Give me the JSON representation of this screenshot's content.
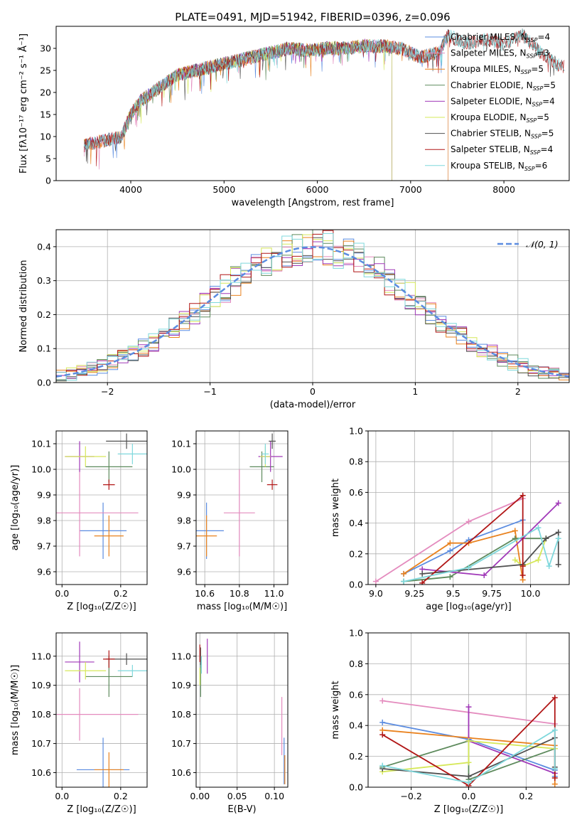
{
  "figure_title": "PLATE=0491, MJD=51942, FIBERID=0396, z=0.096",
  "palette": {
    "Chabrier MILES": "#5b8ce0",
    "Salpeter MILES": "#e48bbe",
    "Kroupa MILES": "#e9821e",
    "Chabrier ELODIE": "#5d8a5c",
    "Salpeter ELODIE": "#a038b8",
    "Kroupa ELODIE": "#d6e85a",
    "Chabrier STELIB": "#505050",
    "Salpeter STELIB": "#b11616",
    "Kroupa STELIB": "#7fd8dc"
  },
  "chart_data": [
    {
      "id": "spectrum",
      "type": "line",
      "title": "PLATE=0491, MJD=51942, FIBERID=0396, z=0.096",
      "xlabel": "wavelength [Angstrom, rest frame]",
      "ylabel": "Flux [fλ10⁻¹⁷ erg cm⁻² s⁻¹ Å⁻¹]",
      "xlim": [
        3200,
        8700
      ],
      "ylim": [
        0,
        35
      ],
      "xticks": [
        "4000",
        "5000",
        "6000",
        "7000",
        "8000"
      ],
      "yticks": [
        "0",
        "5",
        "10",
        "15",
        "20",
        "25",
        "30"
      ],
      "grid": false,
      "legend_position": "top-right",
      "continuum": {
        "x": [
          3500,
          3700,
          3900,
          4000,
          4100,
          4300,
          4500,
          4700,
          4900,
          5100,
          5300,
          5500,
          5700,
          5900,
          6100,
          6300,
          6500,
          6700,
          6900,
          7100,
          7300,
          7400,
          7600,
          7800,
          8000,
          8200,
          8400,
          8600
        ],
        "y": [
          8,
          9,
          10,
          15,
          18,
          21,
          24,
          25,
          26,
          27,
          28,
          29,
          30,
          29.5,
          30,
          30,
          30.5,
          30.5,
          30,
          28,
          29,
          33,
          31,
          32,
          31,
          33,
          29,
          26
        ]
      },
      "series": [
        {
          "name": "Chabrier MILES, N_SSP=4",
          "x_range": [
            3500,
            7400
          ]
        },
        {
          "name": "Salpeter MILES, N_SSP=3",
          "x_range": [
            3500,
            7400
          ]
        },
        {
          "name": "Kroupa MILES, N_SSP=5",
          "x_range": [
            3500,
            7400
          ]
        },
        {
          "name": "Chabrier ELODIE, N_SSP=5",
          "x_range": [
            3900,
            6800
          ]
        },
        {
          "name": "Salpeter ELODIE, N_SSP=4",
          "x_range": [
            3900,
            6800
          ]
        },
        {
          "name": "Kroupa ELODIE, N_SSP=5",
          "x_range": [
            3900,
            6800
          ]
        },
        {
          "name": "Chabrier STELIB, N_SSP=5",
          "x_range": [
            3500,
            8650
          ]
        },
        {
          "name": "Salpeter STELIB, N_SSP=4",
          "x_range": [
            3500,
            8650
          ]
        },
        {
          "name": "Kroupa STELIB, N_SSP=6",
          "x_range": [
            3500,
            8650
          ]
        }
      ],
      "legend": [
        "Chabrier MILES, N_SSP=4",
        "Salpeter MILES, N_SSP=3",
        "Kroupa MILES, N_SSP=5",
        "Chabrier ELODIE, N_SSP=5",
        "Salpeter ELODIE, N_SSP=4",
        "Kroupa ELODIE, N_SSP=5",
        "Chabrier STELIB, N_SSP=5",
        "Salpeter STELIB, N_SSP=4",
        "Kroupa STELIB, N_SSP=6"
      ]
    },
    {
      "id": "residuals",
      "type": "line",
      "xlabel": "(data-model)/error",
      "ylabel": "Normed distribution",
      "xlim": [
        -2.5,
        2.5
      ],
      "ylim": [
        0,
        0.45
      ],
      "xticks": [
        "−2",
        "−1",
        "0",
        "1",
        "2"
      ],
      "yticks": [
        "0.0",
        "0.1",
        "0.2",
        "0.3",
        "0.4"
      ],
      "grid": true,
      "legend_position": "top-right",
      "legend": [
        "𝒩(0, 1)"
      ],
      "bins": [
        -2.5,
        -2.4,
        -2.3,
        -2.2,
        -2.1,
        -2.0,
        -1.9,
        -1.8,
        -1.7,
        -1.6,
        -1.5,
        -1.4,
        -1.3,
        -1.2,
        -1.1,
        -1.0,
        -0.9,
        -0.8,
        -0.7,
        -0.6,
        -0.5,
        -0.4,
        -0.3,
        -0.2,
        -0.1,
        0.0,
        0.1,
        0.2,
        0.3,
        0.4,
        0.5,
        0.6,
        0.7,
        0.8,
        0.9,
        1.0,
        1.1,
        1.2,
        1.3,
        1.4,
        1.5,
        1.6,
        1.7,
        1.8,
        1.9,
        2.0,
        2.1,
        2.2,
        2.3,
        2.4,
        2.5
      ],
      "gaussian": {
        "mean": 0,
        "sigma": 1
      }
    },
    {
      "id": "age-vs-Z",
      "type": "scatter",
      "xlabel": "Z [log₁₀(Z/Z☉)]",
      "ylabel": "age  [log₁₀(age/yr)]",
      "xlim": [
        -0.02,
        0.29
      ],
      "ylim": [
        9.55,
        10.15
      ],
      "xticks": [
        "0.0",
        "0.2"
      ],
      "yticks": [
        "9.6",
        "9.7",
        "9.8",
        "9.9",
        "10.0",
        "10.1"
      ],
      "grid": true,
      "points": [
        {
          "name": "Chabrier MILES",
          "x": 0.14,
          "y": 9.76,
          "xerr": 0.08,
          "yerr": 0.11
        },
        {
          "name": "Salpeter MILES",
          "x": 0.06,
          "y": 9.83,
          "xerr": 0.2,
          "yerr": 0.17
        },
        {
          "name": "Kroupa MILES",
          "x": 0.16,
          "y": 9.74,
          "xerr": 0.05,
          "yerr": 0.08
        },
        {
          "name": "Chabrier ELODIE",
          "x": 0.16,
          "y": 10.01,
          "xerr": 0.08,
          "yerr": 0.06
        },
        {
          "name": "Salpeter ELODIE",
          "x": 0.06,
          "y": 10.05,
          "xerr": 0.05,
          "yerr": 0.06
        },
        {
          "name": "Kroupa ELODIE",
          "x": 0.08,
          "y": 10.05,
          "xerr": 0.07,
          "yerr": 0.04
        },
        {
          "name": "Chabrier STELIB",
          "x": 0.22,
          "y": 10.11,
          "xerr": 0.07,
          "yerr": 0.03
        },
        {
          "name": "Salpeter STELIB",
          "x": 0.16,
          "y": 9.94,
          "xerr": 0.02,
          "yerr": 0.02
        },
        {
          "name": "Kroupa STELIB",
          "x": 0.24,
          "y": 10.06,
          "xerr": 0.05,
          "yerr": 0.04
        }
      ]
    },
    {
      "id": "age-vs-mass",
      "type": "scatter",
      "xlabel": "mass [log₁₀(M/M☉)]",
      "ylabel": "",
      "xlim": [
        10.55,
        11.08
      ],
      "ylim": [
        9.55,
        10.15
      ],
      "xticks": [
        "10.6",
        "10.8",
        "11.0"
      ],
      "yticks": [
        "9.6",
        "9.7",
        "9.8",
        "9.9",
        "10.0",
        "10.1"
      ],
      "grid": true,
      "points": [
        {
          "name": "Chabrier MILES",
          "x": 10.61,
          "y": 9.76,
          "xerr": 0.1,
          "yerr": 0.11
        },
        {
          "name": "Salpeter MILES",
          "x": 10.8,
          "y": 9.83,
          "xerr": 0.09,
          "yerr": 0.17
        },
        {
          "name": "Kroupa MILES",
          "x": 10.61,
          "y": 9.74,
          "xerr": 0.06,
          "yerr": 0.08
        },
        {
          "name": "Chabrier ELODIE",
          "x": 10.93,
          "y": 10.01,
          "xerr": 0.07,
          "yerr": 0.06
        },
        {
          "name": "Salpeter ELODIE",
          "x": 10.98,
          "y": 10.05,
          "xerr": 0.07,
          "yerr": 0.06
        },
        {
          "name": "Kroupa ELODIE",
          "x": 10.95,
          "y": 10.05,
          "xerr": 0.03,
          "yerr": 0.04
        },
        {
          "name": "Chabrier STELIB",
          "x": 10.99,
          "y": 10.11,
          "xerr": 0.02,
          "yerr": 0.03
        },
        {
          "name": "Salpeter STELIB",
          "x": 10.99,
          "y": 9.94,
          "xerr": 0.03,
          "yerr": 0.02
        },
        {
          "name": "Kroupa STELIB",
          "x": 10.95,
          "y": 10.06,
          "xerr": 0.02,
          "yerr": 0.04
        }
      ]
    },
    {
      "id": "weight-vs-age",
      "type": "line",
      "xlabel": "age  [log₁₀(age/yr)]",
      "ylabel": "mass weight",
      "xlim": [
        8.95,
        10.25
      ],
      "ylim": [
        0,
        1
      ],
      "xticks": [
        "9.0",
        "9.25",
        "9.5",
        "9.75",
        "10.0"
      ],
      "yticks": [
        "0.0",
        "0.2",
        "0.4",
        "0.6",
        "0.8",
        "1.0"
      ],
      "grid": true,
      "series": [
        {
          "name": "Chabrier MILES",
          "x": [
            9.18,
            9.48,
            9.6,
            9.95
          ],
          "y": [
            0.07,
            0.22,
            0.29,
            0.42
          ]
        },
        {
          "name": "Salpeter MILES",
          "x": [
            9.0,
            9.6,
            9.95
          ],
          "y": [
            0.02,
            0.41,
            0.56
          ]
        },
        {
          "name": "Kroupa MILES",
          "x": [
            9.18,
            9.48,
            9.6,
            9.9,
            9.95
          ],
          "y": [
            0.07,
            0.27,
            0.27,
            0.35,
            0.03
          ]
        },
        {
          "name": "Chabrier ELODIE",
          "x": [
            9.18,
            9.48,
            9.9,
            9.95,
            10.1
          ],
          "y": [
            0.02,
            0.05,
            0.3,
            0.3,
            0.3
          ]
        },
        {
          "name": "Salpeter ELODIE",
          "x": [
            9.3,
            9.7,
            9.95,
            10.18
          ],
          "y": [
            0.1,
            0.06,
            0.3,
            0.53
          ]
        },
        {
          "name": "Kroupa ELODIE",
          "x": [
            9.9,
            9.95,
            10.05,
            10.1
          ],
          "y": [
            0.16,
            0.12,
            0.16,
            0.3
          ]
        },
        {
          "name": "Chabrier STELIB",
          "x": [
            9.3,
            9.95,
            10.1,
            10.18,
            10.18
          ],
          "y": [
            0.07,
            0.13,
            0.3,
            0.34,
            0.13
          ]
        },
        {
          "name": "Salpeter STELIB",
          "x": [
            9.3,
            9.95,
            9.95,
            9.95
          ],
          "y": [
            0.01,
            0.58,
            0.06,
            0.12
          ]
        },
        {
          "name": "Kroupa STELIB",
          "x": [
            9.18,
            9.6,
            10.05,
            10.12,
            10.18
          ],
          "y": [
            0.02,
            0.11,
            0.37,
            0.12,
            0.3
          ]
        }
      ]
    },
    {
      "id": "mass-vs-Z",
      "type": "scatter",
      "xlabel": "Z [log₁₀(Z/Z☉)]",
      "ylabel": "mass [log₁₀(M/M☉)]",
      "xlim": [
        -0.02,
        0.29
      ],
      "ylim": [
        10.55,
        11.08
      ],
      "xticks": [
        "0.0",
        "0.2"
      ],
      "yticks": [
        "10.6",
        "10.7",
        "10.8",
        "10.9",
        "11.0"
      ],
      "grid": true,
      "points": [
        {
          "name": "Chabrier MILES",
          "x": 0.14,
          "y": 10.61,
          "xerr": 0.09,
          "yerr": 0.11
        },
        {
          "name": "Salpeter MILES",
          "x": 0.06,
          "y": 10.8,
          "xerr": 0.2,
          "yerr": 0.09
        },
        {
          "name": "Kroupa MILES",
          "x": 0.16,
          "y": 10.61,
          "xerr": 0.05,
          "yerr": 0.06
        },
        {
          "name": "Chabrier ELODIE",
          "x": 0.16,
          "y": 10.93,
          "xerr": 0.08,
          "yerr": 0.07
        },
        {
          "name": "Salpeter ELODIE",
          "x": 0.06,
          "y": 10.98,
          "xerr": 0.05,
          "yerr": 0.07
        },
        {
          "name": "Kroupa ELODIE",
          "x": 0.08,
          "y": 10.95,
          "xerr": 0.07,
          "yerr": 0.03
        },
        {
          "name": "Chabrier STELIB",
          "x": 0.22,
          "y": 10.99,
          "xerr": 0.07,
          "yerr": 0.02
        },
        {
          "name": "Salpeter STELIB",
          "x": 0.16,
          "y": 10.99,
          "xerr": 0.02,
          "yerr": 0.03
        },
        {
          "name": "Kroupa STELIB",
          "x": 0.24,
          "y": 10.95,
          "xerr": 0.05,
          "yerr": 0.02
        }
      ]
    },
    {
      "id": "mass-vs-ebv",
      "type": "scatter",
      "xlabel": "E(B-V)",
      "ylabel": "",
      "xlim": [
        -0.005,
        0.118
      ],
      "ylim": [
        10.55,
        11.08
      ],
      "xticks": [
        "0.00",
        "0.05",
        "0.10"
      ],
      "yticks": [
        "10.6",
        "10.7",
        "10.8",
        "10.9",
        "11.0"
      ],
      "grid": true,
      "points": [
        {
          "name": "Chabrier MILES",
          "x": 0.113,
          "y": 10.64,
          "xerr": 0,
          "yerr": 0.08
        },
        {
          "name": "Salpeter MILES",
          "x": 0.11,
          "y": 10.76,
          "xerr": 0,
          "yerr": 0.1
        },
        {
          "name": "Kroupa MILES",
          "x": 0.114,
          "y": 10.61,
          "xerr": 0,
          "yerr": 0.05
        },
        {
          "name": "Chabrier ELODIE",
          "x": 0.001,
          "y": 10.92,
          "xerr": 0,
          "yerr": 0.06
        },
        {
          "name": "Salpeter ELODIE",
          "x": 0.01,
          "y": 11.0,
          "xerr": 0,
          "yerr": 0.06
        },
        {
          "name": "Kroupa ELODIE",
          "x": 0.0,
          "y": 10.93,
          "xerr": 0,
          "yerr": 0.03
        },
        {
          "name": "Chabrier STELIB",
          "x": 0.001,
          "y": 11.0,
          "xerr": 0,
          "yerr": 0.03
        },
        {
          "name": "Salpeter STELIB",
          "x": 0.0,
          "y": 11.01,
          "xerr": 0,
          "yerr": 0.03
        },
        {
          "name": "Kroupa STELIB",
          "x": 0.002,
          "y": 10.97,
          "xerr": 0,
          "yerr": 0.03
        }
      ]
    },
    {
      "id": "weight-vs-Z",
      "type": "line",
      "xlabel": "Z [log₁₀(Z/Z☉)]",
      "ylabel": "mass weight",
      "xlim": [
        -0.35,
        0.35
      ],
      "ylim": [
        0,
        1
      ],
      "xticks": [
        "−0.2",
        "0.0",
        "0.2"
      ],
      "yticks": [
        "0.0",
        "0.2",
        "0.4",
        "0.6",
        "0.8",
        "1.0"
      ],
      "grid": true,
      "series": [
        {
          "name": "Chabrier MILES",
          "x": [
            -0.3,
            0.0,
            0.3,
            0.3
          ],
          "y": [
            0.42,
            0.31,
            0.11,
            0.07
          ]
        },
        {
          "name": "Salpeter MILES",
          "x": [
            -0.3,
            0.3
          ],
          "y": [
            0.56,
            0.41
          ]
        },
        {
          "name": "Kroupa MILES",
          "x": [
            -0.3,
            0.0,
            0.3,
            0.3
          ],
          "y": [
            0.37,
            0.32,
            0.27,
            0.02
          ]
        },
        {
          "name": "Chabrier ELODIE",
          "x": [
            -0.3,
            0.0,
            0.0,
            0.3
          ],
          "y": [
            0.13,
            0.3,
            0.05,
            0.25
          ]
        },
        {
          "name": "Salpeter ELODIE",
          "x": [
            0.0,
            0.0,
            0.3
          ],
          "y": [
            0.52,
            0.3,
            0.09
          ]
        },
        {
          "name": "Kroupa ELODIE",
          "x": [
            -0.3,
            0.0,
            0.0,
            0.3
          ],
          "y": [
            0.1,
            0.16,
            0.3,
            0.25
          ]
        },
        {
          "name": "Chabrier STELIB",
          "x": [
            -0.3,
            0.0,
            0.3,
            0.3
          ],
          "y": [
            0.12,
            0.07,
            0.32,
            0.13
          ]
        },
        {
          "name": "Salpeter STELIB",
          "x": [
            -0.3,
            0.0,
            0.3,
            0.3
          ],
          "y": [
            0.34,
            0.01,
            0.58,
            0.06
          ]
        },
        {
          "name": "Kroupa STELIB",
          "x": [
            -0.3,
            0.0,
            0.3,
            0.3
          ],
          "y": [
            0.14,
            0.03,
            0.37,
            0.12
          ]
        }
      ]
    }
  ]
}
